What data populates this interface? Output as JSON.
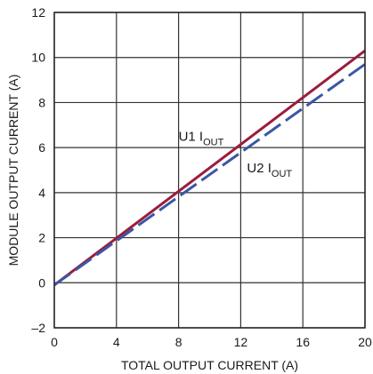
{
  "chart_data": {
    "type": "line",
    "title": "",
    "xlabel": "TOTAL OUTPUT CURRENT (A)",
    "ylabel": "MODULE OUTPUT CURRENT (A)",
    "xlim": [
      0,
      20
    ],
    "ylim": [
      -2,
      12
    ],
    "x_ticks": [
      0,
      4,
      8,
      12,
      16,
      20
    ],
    "y_ticks": [
      -2,
      0,
      2,
      4,
      6,
      8,
      10,
      12
    ],
    "x_tick_labels": [
      "0",
      "4",
      "8",
      "12",
      "16",
      "20"
    ],
    "y_tick_labels": [
      "–2",
      "0",
      "2",
      "4",
      "6",
      "8",
      "10",
      "12"
    ],
    "grid": true,
    "legend": "none",
    "series": [
      {
        "name_main": "U1 I",
        "name_sub": "OUT",
        "x": [
          0,
          20
        ],
        "y": [
          -0.1,
          10.3
        ],
        "color": "#9b1c3c",
        "style": "solid",
        "label_at": [
          8.0,
          6.3
        ]
      },
      {
        "name_main": "U2 I",
        "name_sub": "OUT",
        "x": [
          0,
          20
        ],
        "y": [
          -0.1,
          9.7
        ],
        "color": "#3b56a6",
        "style": "dashed",
        "label_at": [
          12.4,
          4.9
        ]
      }
    ]
  }
}
